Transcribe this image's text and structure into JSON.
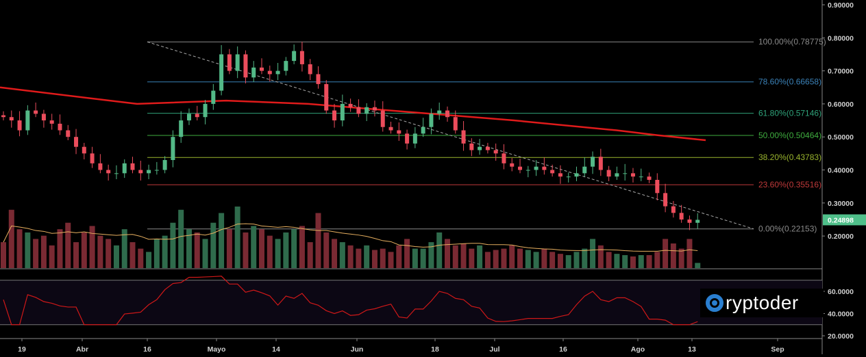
{
  "chart_data": {
    "type": "candlestick",
    "price_axis": {
      "ticks": [
        "0.90000",
        "0.80000",
        "0.70000",
        "0.60000",
        "0.50000",
        "0.40000",
        "0.30000",
        "0.20000"
      ],
      "range": [
        0.1,
        0.9
      ]
    },
    "current_price": "0.24898",
    "x_ticks": [
      "19",
      "Abr",
      "16",
      "Mayo",
      "14",
      "Jun",
      "18",
      "Jul",
      "16",
      "Ago",
      "13",
      "Sep"
    ],
    "fib_levels": [
      {
        "label": "100.00%(0.78775)",
        "value": 0.78775,
        "color": "#8a8a8a"
      },
      {
        "label": "78.60%(0.66658)",
        "value": 0.66658,
        "color": "#3b82b8"
      },
      {
        "label": "61.80%(0.57146)",
        "value": 0.57146,
        "color": "#2fa37a"
      },
      {
        "label": "50.00%(0.50464)",
        "value": 0.50464,
        "color": "#3fae3f"
      },
      {
        "label": "38.20%(0.43783)",
        "value": 0.43783,
        "color": "#9ab52e"
      },
      {
        "label": "23.60%(0.35516)",
        "value": 0.35516,
        "color": "#c0393a"
      },
      {
        "label": "0.00%(0.22153)",
        "value": 0.22153,
        "color": "#8a8a8a"
      }
    ],
    "closes": [
      0.56,
      0.55,
      0.52,
      0.58,
      0.57,
      0.55,
      0.54,
      0.52,
      0.5,
      0.47,
      0.45,
      0.42,
      0.4,
      0.39,
      0.39,
      0.42,
      0.4,
      0.39,
      0.4,
      0.4,
      0.43,
      0.5,
      0.55,
      0.57,
      0.56,
      0.6,
      0.64,
      0.75,
      0.7,
      0.75,
      0.68,
      0.71,
      0.7,
      0.69,
      0.7,
      0.73,
      0.76,
      0.72,
      0.69,
      0.66,
      0.58,
      0.55,
      0.6,
      0.59,
      0.57,
      0.59,
      0.58,
      0.53,
      0.52,
      0.51,
      0.48,
      0.51,
      0.53,
      0.57,
      0.58,
      0.56,
      0.52,
      0.48,
      0.46,
      0.47,
      0.46,
      0.45,
      0.42,
      0.41,
      0.4,
      0.4,
      0.41,
      0.4,
      0.39,
      0.38,
      0.38,
      0.39,
      0.41,
      0.44,
      0.4,
      0.38,
      0.39,
      0.39,
      0.38,
      0.38,
      0.37,
      0.33,
      0.29,
      0.27,
      0.25,
      0.24,
      0.249
    ],
    "volumes": [
      40,
      90,
      60,
      55,
      45,
      50,
      35,
      60,
      70,
      40,
      55,
      65,
      50,
      45,
      35,
      60,
      40,
      30,
      25,
      45,
      50,
      70,
      90,
      60,
      55,
      45,
      70,
      85,
      60,
      95,
      55,
      65,
      60,
      50,
      45,
      55,
      60,
      65,
      40,
      85,
      55,
      45,
      40,
      35,
      30,
      35,
      28,
      30,
      25,
      35,
      45,
      30,
      30,
      40,
      55,
      45,
      35,
      38,
      30,
      35,
      25,
      28,
      30,
      35,
      30,
      28,
      25,
      30,
      25,
      22,
      20,
      25,
      30,
      45,
      35,
      25,
      22,
      20,
      18,
      20,
      20,
      25,
      45,
      38,
      30,
      45,
      8
    ],
    "ma200": [
      [
        0,
        0.65
      ],
      [
        200,
        0.6
      ],
      [
        330,
        0.61
      ],
      [
        450,
        0.6
      ],
      [
        600,
        0.575
      ],
      [
        750,
        0.55
      ],
      [
        900,
        0.52
      ],
      [
        960,
        0.505
      ],
      [
        1030,
        0.49
      ]
    ],
    "rsi_axis": {
      "ticks": [
        "60.0000",
        "40.0000",
        "20.0000"
      ],
      "bands": [
        70,
        30
      ]
    }
  },
  "watermark": "Cryptoder"
}
